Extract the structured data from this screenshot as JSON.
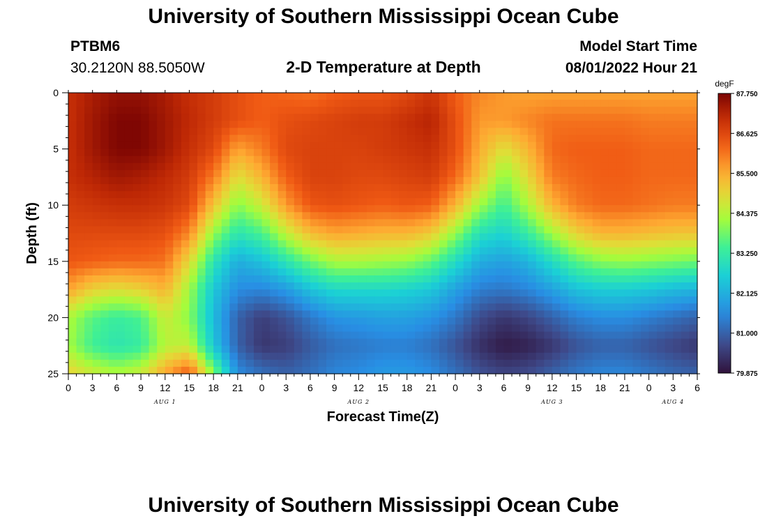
{
  "header": {
    "title": "University of Southern Mississippi Ocean Cube",
    "station_id": "PTBM6",
    "station_coords": "30.2120N  88.5050W",
    "plot_title": "2-D Temperature at Depth",
    "model_label": "Model Start Time",
    "model_time": "08/01/2022 Hour 21"
  },
  "footer": {
    "title": "University of Southern Mississippi Ocean Cube"
  },
  "chart_data": {
    "type": "heatmap",
    "title": "2-D Temperature at Depth",
    "xlabel": "Forecast Time(Z)",
    "ylabel": "Depth (ft)",
    "units": "degF",
    "x_ticks": [
      "0",
      "3",
      "6",
      "9",
      "12",
      "15",
      "18",
      "21",
      "0",
      "3",
      "6",
      "9",
      "12",
      "15",
      "18",
      "21",
      "0",
      "3",
      "6",
      "9",
      "12",
      "15",
      "18",
      "21",
      "0",
      "3",
      "6"
    ],
    "x_range_hours": [
      0,
      78
    ],
    "date_labels": [
      {
        "text": "AUG 1",
        "hour": 12
      },
      {
        "text": "AUG 2",
        "hour": 36
      },
      {
        "text": "AUG 3",
        "hour": 60
      },
      {
        "text": "AUG 4",
        "hour": 75
      }
    ],
    "y_ticks": [
      0,
      5,
      10,
      15,
      20,
      25
    ],
    "y_range_ft": [
      0,
      25
    ],
    "y_inverted": true,
    "colorbar": {
      "min": 79.875,
      "max": 87.75,
      "labels": [
        "87.750",
        "86.625",
        "85.500",
        "84.375",
        "83.250",
        "82.125",
        "81.000",
        "79.875"
      ],
      "label_values": [
        87.75,
        86.625,
        85.5,
        84.375,
        83.25,
        82.125,
        81.0,
        79.875
      ]
    },
    "grid_hours": [
      0,
      3,
      6,
      9,
      12,
      15,
      18,
      21,
      24,
      27,
      30,
      33,
      36,
      39,
      42,
      45,
      48,
      51,
      54,
      57,
      60,
      63,
      66,
      69,
      72,
      75,
      78
    ],
    "grid_depths_ft": [
      0,
      2.5,
      5,
      7.5,
      10,
      12.5,
      15,
      17.5,
      20,
      22.5,
      25
    ],
    "temperature_grid_degF": [
      [
        87.0,
        87.3,
        87.5,
        87.5,
        87.3,
        87.0,
        86.8,
        86.5,
        86.3,
        86.2,
        86.1,
        86.3,
        86.4,
        86.4,
        86.6,
        86.9,
        86.3,
        85.9,
        85.7,
        85.6,
        85.6,
        85.6,
        85.6,
        85.6,
        85.6,
        85.6,
        85.6
      ],
      [
        87.0,
        87.4,
        87.7,
        87.7,
        87.4,
        87.1,
        86.8,
        86.5,
        86.3,
        86.5,
        86.6,
        86.7,
        86.8,
        86.8,
        87.0,
        87.2,
        86.5,
        85.7,
        85.7,
        85.9,
        86.1,
        86.1,
        86.1,
        86.1,
        86.0,
        86.0,
        86.0
      ],
      [
        87.0,
        87.4,
        87.7,
        87.7,
        87.4,
        87.0,
        86.6,
        85.6,
        86.0,
        86.6,
        86.7,
        86.7,
        86.7,
        86.8,
        86.9,
        87.0,
        86.5,
        85.5,
        84.8,
        85.4,
        86.2,
        86.3,
        86.3,
        86.3,
        86.2,
        86.2,
        86.2
      ],
      [
        87.0,
        87.2,
        87.4,
        87.3,
        87.1,
        86.8,
        86.0,
        84.8,
        85.4,
        86.3,
        86.7,
        86.7,
        86.6,
        86.6,
        86.7,
        86.8,
        86.2,
        85.2,
        84.0,
        84.9,
        86.0,
        86.2,
        86.3,
        86.3,
        86.2,
        86.2,
        86.2
      ],
      [
        86.8,
        86.9,
        87.0,
        87.0,
        86.9,
        86.6,
        85.2,
        84.0,
        84.6,
        85.7,
        86.4,
        86.5,
        86.4,
        86.3,
        86.4,
        86.3,
        85.4,
        84.2,
        83.4,
        84.3,
        85.4,
        86.0,
        86.2,
        86.2,
        86.1,
        86.0,
        86.0
      ],
      [
        86.6,
        86.6,
        86.6,
        86.6,
        86.5,
        85.9,
        84.1,
        83.1,
        83.5,
        84.5,
        85.3,
        85.6,
        85.5,
        85.4,
        85.4,
        85.1,
        84.1,
        83.0,
        82.7,
        83.3,
        84.2,
        85.0,
        85.4,
        85.4,
        85.3,
        85.2,
        85.2
      ],
      [
        86.4,
        86.3,
        86.2,
        86.2,
        86.1,
        84.9,
        83.1,
        82.1,
        82.4,
        83.1,
        83.8,
        84.3,
        84.3,
        84.2,
        84.1,
        83.7,
        82.9,
        82.1,
        81.9,
        82.2,
        82.9,
        83.6,
        84.0,
        84.1,
        84.0,
        83.9,
        83.8
      ],
      [
        85.6,
        85.0,
        84.8,
        85.0,
        85.4,
        84.2,
        82.5,
        81.6,
        81.5,
        81.8,
        82.4,
        82.8,
        82.8,
        82.8,
        82.7,
        82.5,
        81.9,
        81.4,
        81.3,
        81.5,
        81.9,
        82.4,
        82.6,
        82.6,
        82.5,
        82.3,
        82.2
      ],
      [
        84.3,
        83.6,
        83.3,
        83.5,
        84.6,
        84.0,
        82.3,
        81.0,
        80.5,
        80.8,
        81.3,
        81.7,
        81.8,
        81.9,
        81.9,
        81.7,
        81.3,
        80.7,
        80.4,
        80.6,
        81.0,
        81.4,
        81.6,
        81.6,
        81.4,
        81.2,
        81.0
      ],
      [
        84.2,
        83.4,
        83.1,
        83.3,
        84.4,
        84.5,
        82.5,
        81.0,
        80.4,
        80.5,
        80.9,
        81.2,
        81.3,
        81.4,
        81.4,
        81.2,
        80.8,
        80.3,
        80.0,
        80.1,
        80.4,
        80.8,
        81.0,
        81.0,
        80.8,
        80.6,
        80.4
      ],
      [
        85.0,
        84.6,
        84.3,
        84.6,
        85.6,
        86.4,
        84.0,
        81.6,
        81.2,
        81.0,
        81.2,
        81.5,
        81.6,
        81.8,
        81.8,
        81.6,
        81.2,
        80.8,
        80.6,
        80.7,
        81.0,
        81.3,
        81.5,
        81.5,
        81.3,
        81.1,
        81.0
      ]
    ]
  }
}
